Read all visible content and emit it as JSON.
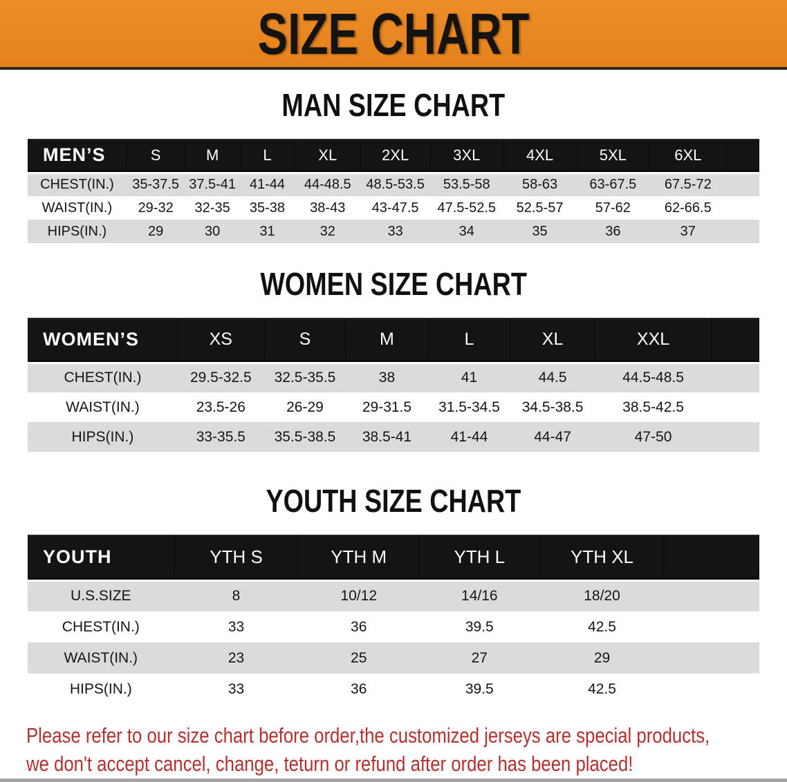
{
  "banner": {
    "title": "SIZE CHART",
    "bg_color": "#E8861E",
    "text_color": "#151310"
  },
  "colors": {
    "table_header_bg": "#141414",
    "table_header_text": "#FFFFFF",
    "row_stripe": "#DBDBDB",
    "disclaimer_text": "#B23130"
  },
  "chart_data": [
    {
      "type": "table",
      "id": "men",
      "title": "MAN SIZE CHART",
      "header_label": "MEN’S",
      "columns": [
        "S",
        "M",
        "L",
        "XL",
        "2XL",
        "3XL",
        "4XL",
        "5XL",
        "6XL"
      ],
      "rows": [
        {
          "label": "CHEST(IN.)",
          "values": [
            "35-37.5",
            "37.5-41",
            "41-44",
            "44-48.5",
            "48.5-53.5",
            "53.5-58",
            "58-63",
            "63-67.5",
            "67.5-72"
          ]
        },
        {
          "label": "WAIST(IN.)",
          "values": [
            "29-32",
            "32-35",
            "35-38",
            "38-43",
            "43-47.5",
            "47.5-52.5",
            "52.5-57",
            "57-62",
            "62-66.5"
          ]
        },
        {
          "label": "HIPS(IN.)",
          "values": [
            "29",
            "30",
            "31",
            "32",
            "33",
            "34",
            "35",
            "36",
            "37"
          ]
        }
      ]
    },
    {
      "type": "table",
      "id": "women",
      "title": "WOMEN SIZE CHART",
      "header_label": "WOMEN’S",
      "columns": [
        "XS",
        "S",
        "M",
        "L",
        "XL",
        "XXL"
      ],
      "rows": [
        {
          "label": "CHEST(IN.)",
          "values": [
            "29.5-32.5",
            "32.5-35.5",
            "38",
            "41",
            "44.5",
            "44.5-48.5"
          ]
        },
        {
          "label": "WAIST(IN.)",
          "values": [
            "23.5-26",
            "26-29",
            "29-31.5",
            "31.5-34.5",
            "34.5-38.5",
            "38.5-42.5"
          ]
        },
        {
          "label": "HIPS(IN.)",
          "values": [
            "33-35.5",
            "35.5-38.5",
            "38.5-41",
            "41-44",
            "44-47",
            "47-50"
          ]
        }
      ]
    },
    {
      "type": "table",
      "id": "youth",
      "title": "YOUTH SIZE CHART",
      "header_label": "YOUTH",
      "columns": [
        "YTH S",
        "YTH M",
        "YTH L",
        "YTH XL"
      ],
      "rows": [
        {
          "label": "U.S.SIZE",
          "values": [
            "8",
            "10/12",
            "14/16",
            "18/20"
          ]
        },
        {
          "label": "CHEST(IN.)",
          "values": [
            "33",
            "36",
            "39.5",
            "42.5"
          ]
        },
        {
          "label": "WAIST(IN.)",
          "values": [
            "23",
            "25",
            "27",
            "29"
          ]
        },
        {
          "label": "HIPS(IN.)",
          "values": [
            "33",
            "36",
            "39.5",
            "42.5"
          ]
        }
      ]
    }
  ],
  "disclaimer": {
    "line1": "Please refer to our size chart before order,the customized jerseys are special products,",
    "line2": "we don't accept cancel, change, teturn or refund after order has been placed!"
  }
}
